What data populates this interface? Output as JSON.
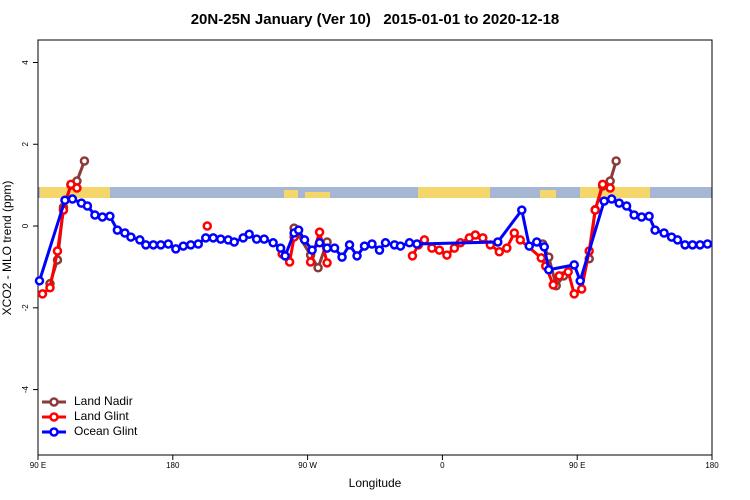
{
  "chart_data": {
    "type": "line",
    "title": "20N-25N January (Ver 10)   2015-01-01 to 2020-12-18",
    "x_label": "Longitude",
    "y_label": "XCO2 - MLO trend (ppm)",
    "xlim": [
      90,
      540
    ],
    "ylim": [
      -5.6,
      4.55
    ],
    "xticks": [
      {
        "value": 90,
        "label": "90 E"
      },
      180,
      {
        "value": 270,
        "label": "90 W"
      },
      {
        "value": 360,
        "label": "0"
      },
      {
        "value": 450,
        "label": "90 E"
      },
      {
        "value": 540,
        "label": "180"
      }
    ],
    "yticks": [
      4,
      2,
      0,
      -2,
      -4
    ],
    "legend": "bottom-left",
    "series": [
      {
        "name": "Land Nadir",
        "color": "#8b3a3a",
        "x": [
          98,
          103,
          107,
          112,
          116,
          121,
          null,
          261,
          272,
          277,
          283,
          null,
          427,
          431,
          436,
          441,
          null,
          458,
          462,
          467,
          472,
          476
        ],
        "values": [
          -1.41,
          -0.83,
          0.46,
          1.0,
          1.1,
          1.59,
          null,
          -0.05,
          -0.71,
          -1.02,
          -0.39,
          null,
          -0.44,
          -0.76,
          -1.46,
          -1.22,
          null,
          -0.8,
          0.4,
          0.98,
          1.1,
          1.59
        ]
      },
      {
        "name": "Land Glint",
        "color": "#ff0000",
        "x": [
          93,
          98,
          103,
          107,
          112,
          116,
          null,
          203,
          null,
          253,
          258,
          261,
          null,
          272,
          278,
          283,
          null,
          340,
          344,
          348,
          353,
          358,
          363,
          368,
          372,
          378,
          382,
          387,
          392,
          398,
          403,
          408,
          412,
          426,
          429,
          434,
          438,
          444,
          448,
          453,
          458,
          462,
          467,
          472
        ],
        "values": [
          -1.66,
          -1.51,
          -0.61,
          0.39,
          1.02,
          0.93,
          null,
          0.0,
          null,
          -0.68,
          -0.88,
          -0.27,
          null,
          -0.88,
          -0.15,
          -0.9,
          null,
          -0.73,
          -0.46,
          -0.34,
          -0.54,
          -0.59,
          -0.71,
          -0.54,
          -0.41,
          -0.29,
          -0.22,
          -0.29,
          -0.46,
          -0.63,
          -0.54,
          -0.17,
          -0.34,
          -0.78,
          -0.98,
          -1.44,
          -1.22,
          -1.12,
          -1.66,
          -1.54,
          -0.61,
          0.39,
          1.02,
          0.93
        ]
      },
      {
        "name": "Ocean Glint",
        "color": "#0000ff",
        "x": [
          91,
          108,
          113,
          119,
          123,
          128,
          133,
          138,
          143,
          148,
          152,
          158,
          162,
          167,
          172,
          177,
          182,
          187,
          192,
          197,
          202,
          207,
          212,
          217,
          221,
          227,
          231,
          236,
          241,
          247,
          252,
          255,
          261,
          264,
          268,
          273,
          278,
          283,
          288,
          293,
          298,
          303,
          308,
          313,
          318,
          322,
          328,
          332,
          338,
          343,
          397,
          413,
          418,
          423,
          428,
          431,
          448,
          452,
          468,
          473,
          478,
          483,
          488,
          493,
          498,
          502,
          508,
          513,
          517,
          522,
          527,
          532,
          537
        ],
        "values": [
          -1.34,
          0.63,
          0.66,
          0.56,
          0.49,
          0.27,
          0.22,
          0.24,
          -0.1,
          -0.17,
          -0.27,
          -0.34,
          -0.46,
          -0.46,
          -0.46,
          -0.44,
          -0.56,
          -0.49,
          -0.46,
          -0.44,
          -0.29,
          -0.29,
          -0.32,
          -0.34,
          -0.39,
          -0.29,
          -0.2,
          -0.32,
          -0.32,
          -0.41,
          -0.54,
          -0.73,
          -0.17,
          -0.1,
          -0.34,
          -0.59,
          -0.41,
          -0.54,
          -0.54,
          -0.76,
          -0.46,
          -0.73,
          -0.49,
          -0.44,
          -0.59,
          -0.41,
          -0.46,
          -0.49,
          -0.41,
          -0.44,
          -0.39,
          0.39,
          -0.49,
          -0.39,
          -0.51,
          -1.07,
          -0.95,
          -1.34,
          0.61,
          0.66,
          0.56,
          0.49,
          0.27,
          0.22,
          0.24,
          -0.1,
          -0.17,
          -0.27,
          -0.34,
          -0.46,
          -0.46,
          -0.46,
          -0.44
        ]
      }
    ]
  }
}
